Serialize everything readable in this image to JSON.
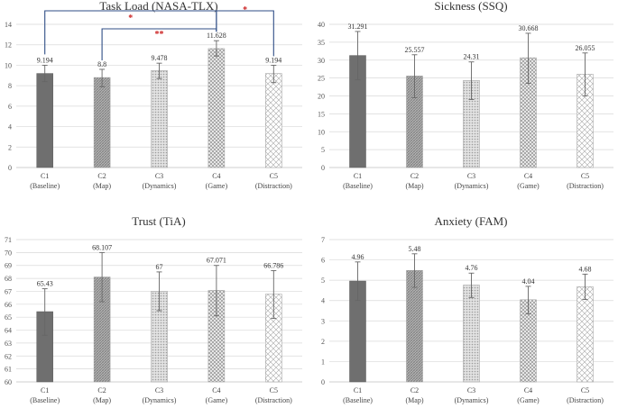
{
  "figure": {
    "description": ""
  },
  "chart_data": [
    {
      "type": "bar",
      "title": "Task Load (NASA-TLX)",
      "categories": [
        [
          "C1",
          "(Baseline)"
        ],
        [
          "C2",
          "(Map)"
        ],
        [
          "C3",
          "(Dynamics)"
        ],
        [
          "C4",
          "(Game)"
        ],
        [
          "C5",
          "(Distraction)"
        ]
      ],
      "values": [
        9.194,
        8.8,
        9.478,
        11.628,
        9.194
      ],
      "value_labels": [
        "9.194",
        "8.8",
        "9.478",
        "11.628",
        "9.194"
      ],
      "error_high": [
        10.0,
        9.6,
        10.2,
        12.4,
        10.0
      ],
      "error_low": [
        8.4,
        7.9,
        8.7,
        10.9,
        8.3
      ],
      "ylim": [
        0,
        14
      ],
      "yticks": [
        "0",
        "2",
        "4",
        "6",
        "8",
        "10",
        "12",
        "14"
      ],
      "ystep": 2,
      "significance": [
        {
          "from": 0,
          "to": 3,
          "label": "*"
        },
        {
          "from": 1,
          "to": 3,
          "label": "**"
        },
        {
          "from": 3,
          "to": 4,
          "label": "*"
        }
      ]
    },
    {
      "type": "bar",
      "title": "Sickness (SSQ)",
      "categories": [
        [
          "C1",
          "(Baseline)"
        ],
        [
          "C2",
          "(Map)"
        ],
        [
          "C3",
          "(Dynamics)"
        ],
        [
          "C4",
          "(Game)"
        ],
        [
          "C5",
          "(Distraction)"
        ]
      ],
      "values": [
        31.291,
        25.557,
        24.31,
        30.668,
        26.055
      ],
      "value_labels": [
        "31.291",
        "25.557",
        "24.31",
        "30.668",
        "26.055"
      ],
      "error_high": [
        38.0,
        31.5,
        29.5,
        37.5,
        32.0
      ],
      "error_low": [
        24.5,
        19.5,
        19.0,
        23.5,
        20.0
      ],
      "ylim": [
        0,
        40
      ],
      "yticks": [
        "0",
        "5",
        "10",
        "15",
        "20",
        "25",
        "30",
        "35",
        "40"
      ],
      "ystep": 5,
      "significance": []
    },
    {
      "type": "bar",
      "title": "Trust (TiA)",
      "categories": [
        [
          "C1",
          "(Baseline)"
        ],
        [
          "C2",
          "(Map)"
        ],
        [
          "C3",
          "(Dynamics)"
        ],
        [
          "C4",
          "(Game)"
        ],
        [
          "C5",
          "(Distraction)"
        ]
      ],
      "values": [
        65.43,
        68.107,
        67,
        67.071,
        66.786
      ],
      "value_labels": [
        "65.43",
        "68.107",
        "67",
        "67.071",
        "66.786"
      ],
      "error_high": [
        67.2,
        70.0,
        68.5,
        69.0,
        68.6
      ],
      "error_low": [
        63.6,
        66.2,
        65.5,
        65.1,
        64.9
      ],
      "ylim": [
        60,
        71
      ],
      "yticks": [
        "60",
        "61",
        "62",
        "63",
        "64",
        "65",
        "66",
        "67",
        "68",
        "69",
        "70",
        "71"
      ],
      "ystep": 1,
      "significance": []
    },
    {
      "type": "bar",
      "title": "Anxiety (FAM)",
      "categories": [
        [
          "C1",
          "(Baseline)"
        ],
        [
          "C2",
          "(Map)"
        ],
        [
          "C3",
          "(Dynamics)"
        ],
        [
          "C4",
          "(Game)"
        ],
        [
          "C5",
          "(Distraction)"
        ]
      ],
      "values": [
        4.96,
        5.48,
        4.76,
        4.04,
        4.68
      ],
      "value_labels": [
        "4.96",
        "5.48",
        "4.76",
        "4.04",
        "4.68"
      ],
      "error_high": [
        5.9,
        6.3,
        5.35,
        4.7,
        5.3
      ],
      "error_low": [
        4.0,
        4.65,
        4.15,
        3.35,
        4.05
      ],
      "ylim": [
        0,
        7
      ],
      "yticks": [
        "0",
        "1",
        "2",
        "3",
        "4",
        "5",
        "6",
        "7"
      ],
      "ystep": 1,
      "significance": []
    }
  ],
  "styles": {
    "bar_fills": [
      "#6f6f6f",
      "hatch-dense",
      "dots-light",
      "crosshatch",
      "diamond-light"
    ],
    "error_color": "#666666",
    "bracket_color": "#2f4e86",
    "star_color": "#cc2222"
  }
}
